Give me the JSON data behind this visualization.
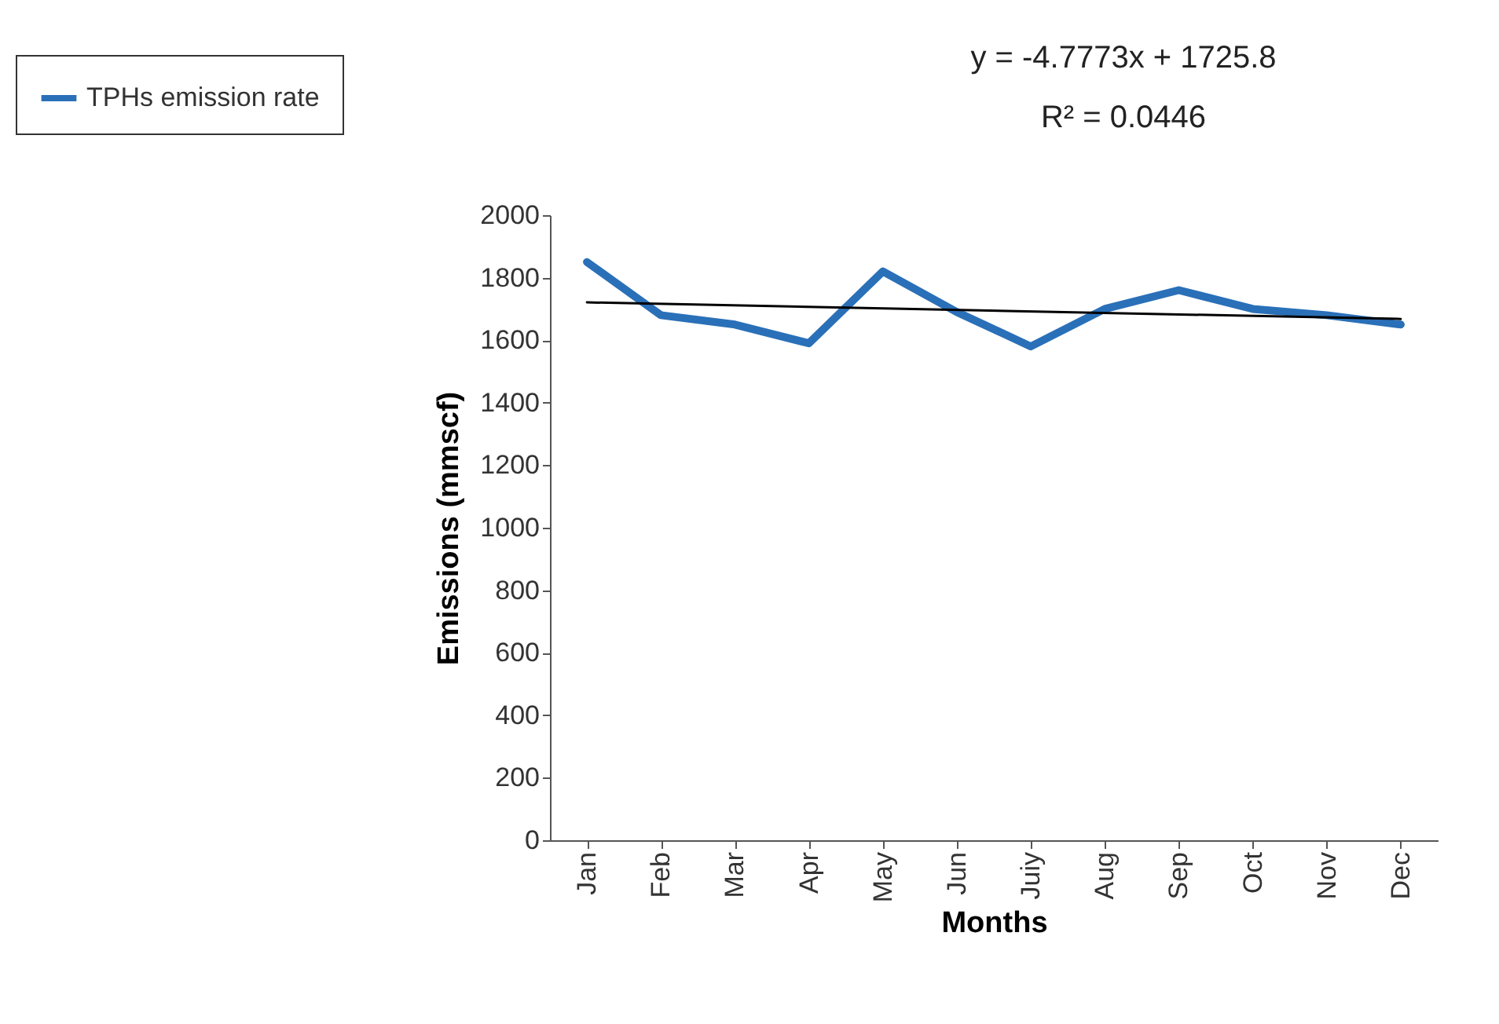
{
  "chart_data": {
    "type": "line",
    "xlabel": "Months",
    "ylabel": "Emissions (mmscf)",
    "categories": [
      "Jan",
      "Feb",
      "Mar",
      "Apr",
      "May",
      "Jun",
      "Juiy",
      "Aug",
      "Sep",
      "Oct",
      "Nov",
      "Dec"
    ],
    "series": [
      {
        "name": "TPHs emission rate",
        "color": "#2a70b8",
        "values": [
          1850,
          1680,
          1650,
          1590,
          1820,
          1690,
          1580,
          1700,
          1760,
          1700,
          1680,
          1650
        ]
      },
      {
        "type": "line",
        "color": "#000000",
        "x": [
          "Jan",
          "Dec"
        ],
        "values": [
          1721,
          1668
        ]
      }
    ],
    "ylim": [
      0,
      2000
    ],
    "yticks": [
      0,
      200,
      400,
      600,
      800,
      1000,
      1200,
      1400,
      1600,
      1800,
      2000
    ],
    "annotations": [
      "y = -4.7773x + 1725.8",
      "R² = 0.0446"
    ],
    "legend": "top left",
    "grid": false
  }
}
